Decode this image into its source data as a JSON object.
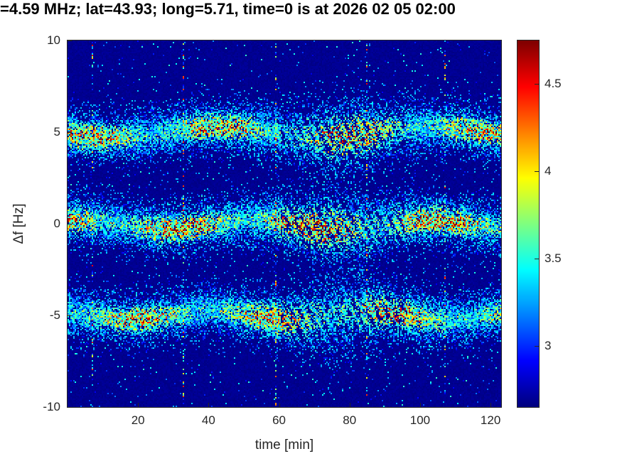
{
  "chart_data": {
    "type": "heatmap",
    "title": "=4.59 MHz;  lat=43.93; long=5.71, time=0 is at 2026 02 05 02:00",
    "xlabel": "time [min]",
    "ylabel": "Δf [Hz]",
    "xlim": [
      0,
      123
    ],
    "ylim": [
      -10,
      10
    ],
    "xticks": [
      20,
      40,
      60,
      80,
      100,
      120
    ],
    "yticks": [
      10,
      5,
      0,
      -5,
      -10
    ],
    "grid": false,
    "colormap": "jet",
    "colorbar": {
      "position": "right",
      "ticks": [
        4.5,
        4,
        3.5,
        3
      ],
      "vmin": 2.65,
      "vmax": 4.75
    },
    "background_value": 2.66,
    "bands": [
      {
        "name": "upper-band",
        "center_hz": 5,
        "wobble_amp_hz": 0.3,
        "wobble_period_min": 60,
        "wobble_phase": 3.4,
        "sigma_hz": 0.8,
        "intensity": 1.0
      },
      {
        "name": "center-band",
        "center_hz": -0.05,
        "wobble_amp_hz": 0.25,
        "wobble_period_min": 50,
        "wobble_phase": 1.2,
        "sigma_hz": 0.8,
        "intensity": 1.15
      },
      {
        "name": "lower-band",
        "center_hz": -5,
        "wobble_amp_hz": 0.25,
        "wobble_period_min": 45,
        "wobble_phase": 2.2,
        "sigma_hz": 0.8,
        "intensity": 0.95
      }
    ],
    "diffuse_region": {
      "center_min": 78,
      "width_min": 15,
      "max_spread": 1.6
    },
    "interference_line_times_min": [
      7,
      33,
      59,
      85,
      107
    ]
  }
}
